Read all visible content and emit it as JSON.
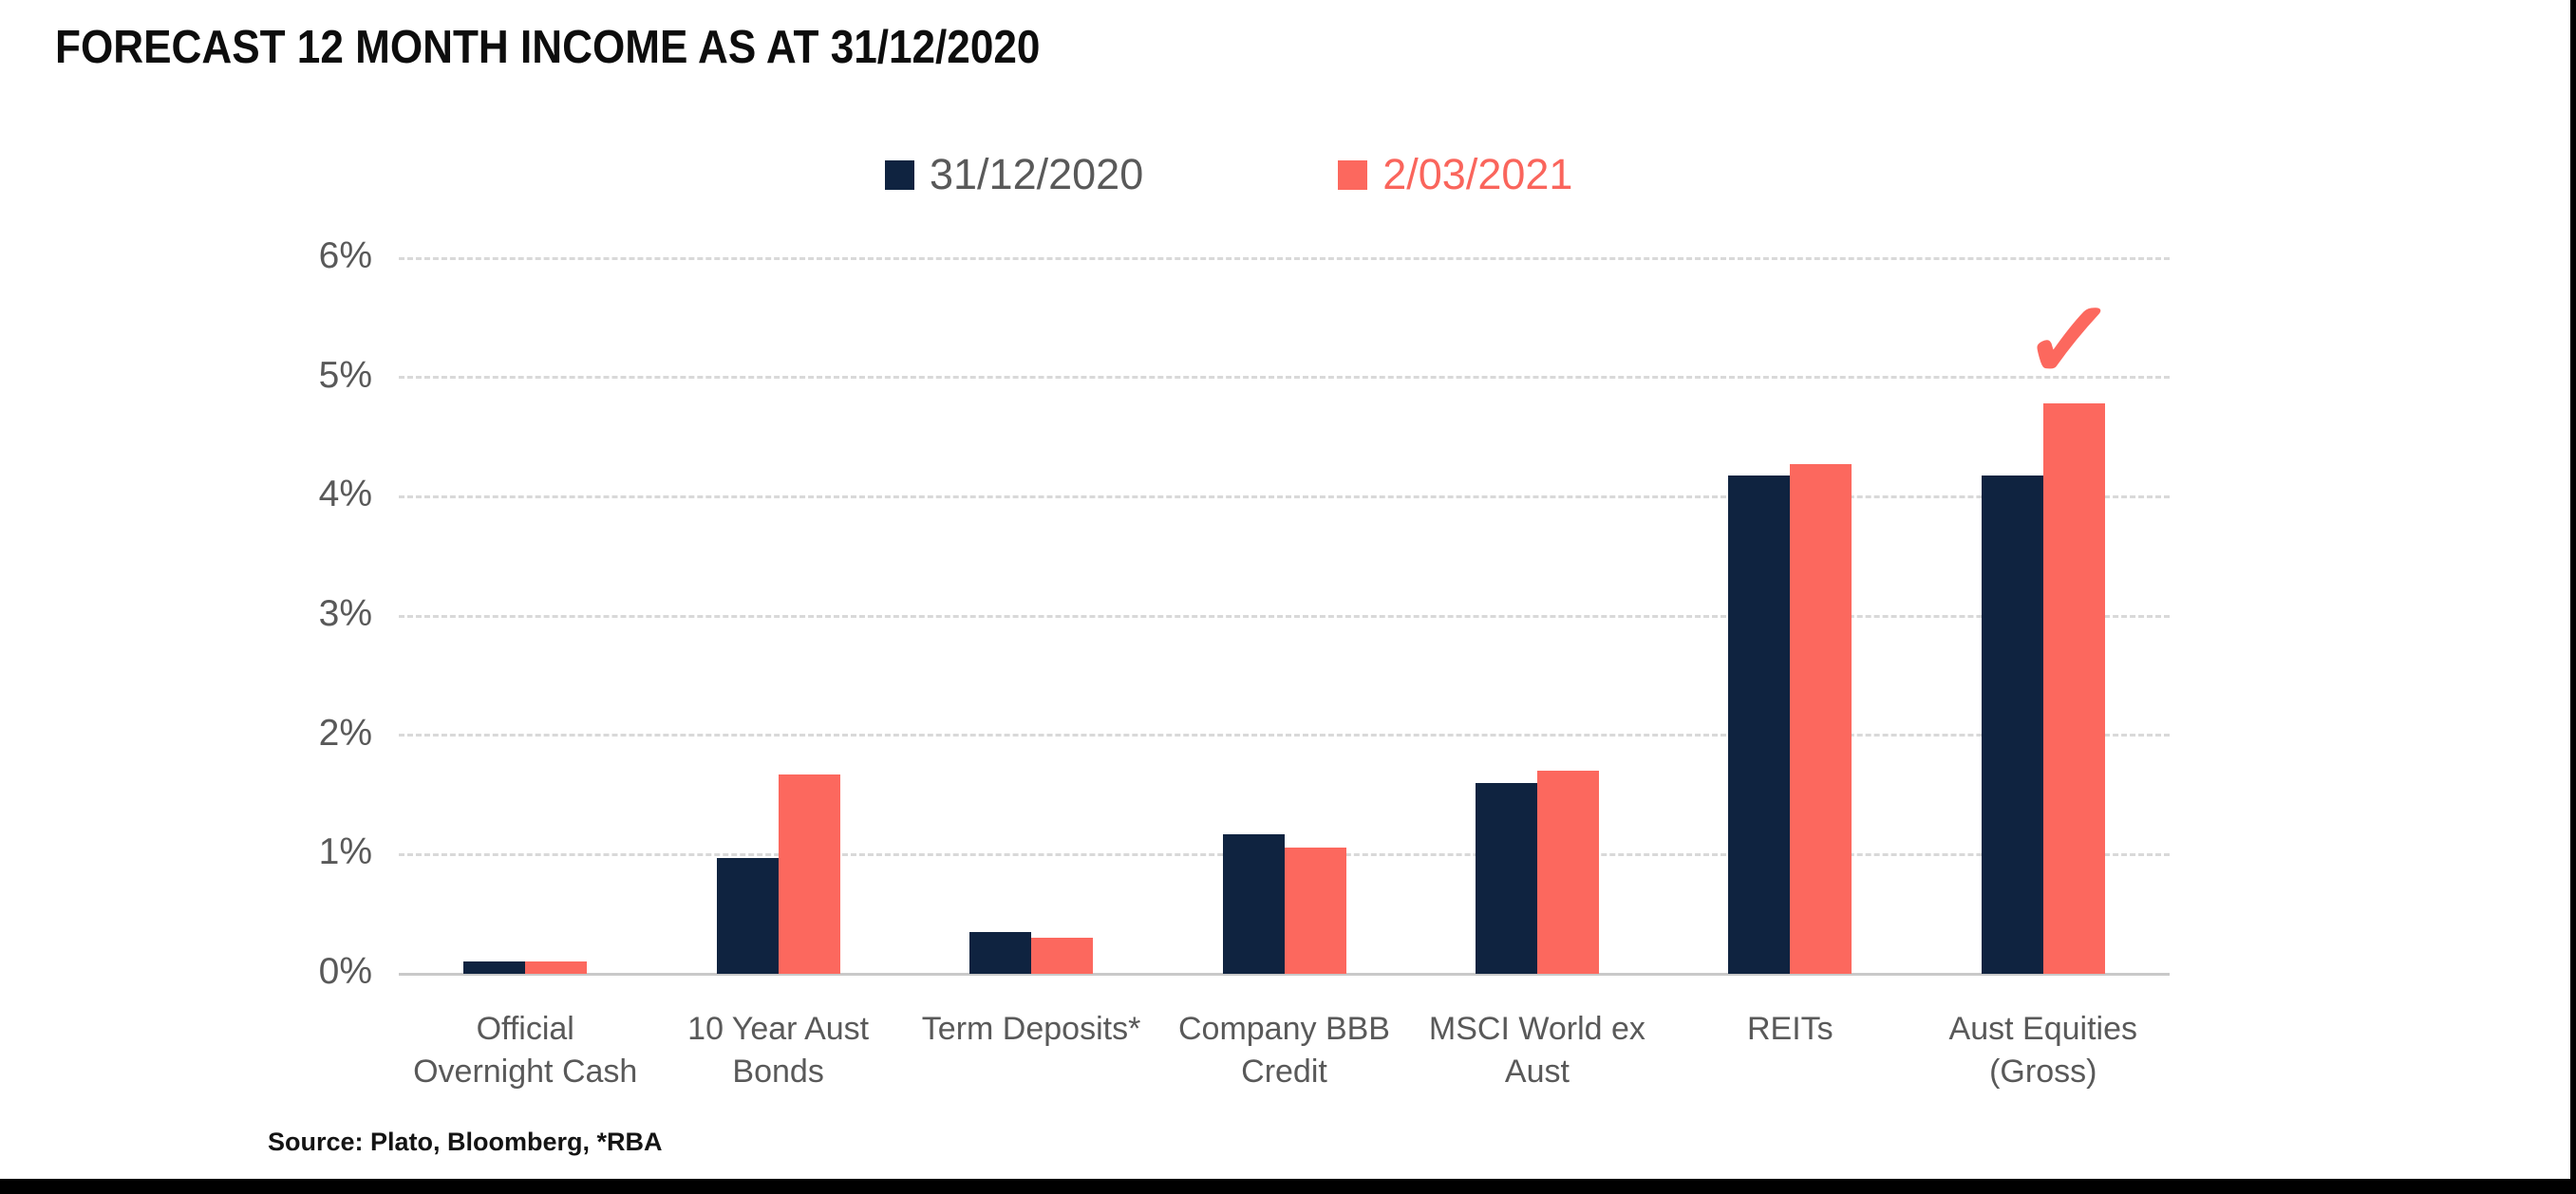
{
  "title": "FORECAST 12 MONTH INCOME AS AT 31/12/2020",
  "source_note": "Source: Plato, Bloomberg, *RBA",
  "colors": {
    "series_navy": "#0f2340",
    "series_coral": "#fc685e",
    "legend_navy_text": "#595959",
    "legend_coral_text": "#fa655c",
    "gridline": "#d9d9d9",
    "axis_line": "#c9c9c9",
    "tick_text": "#595959",
    "category_text": "#595959",
    "title_text": "#0d0d0d"
  },
  "annotation": {
    "checkmark_glyph": "✓",
    "color": "#fc685e",
    "target": "Aust Equities (Gross) — 2/03/2021 bar"
  },
  "chart_data": {
    "type": "bar",
    "title": "FORECAST 12 MONTH INCOME AS AT 31/12/2020",
    "categories": [
      "Official Overnight Cash",
      "10 Year Aust Bonds",
      "Term Deposits*",
      "Company BBB Credit",
      "MSCI World ex Aust",
      "REITs",
      "Aust Equities (Gross)"
    ],
    "categories_display": [
      "Official\nOvernight Cash",
      "10 Year Aust\nBonds",
      "Term Deposits*",
      "Company BBB\nCredit",
      "MSCI World ex\nAust",
      "REITs",
      "Aust Equities\n(Gross)"
    ],
    "series": [
      {
        "name": "31/12/2020",
        "color": "#0f2340",
        "legend_text_color": "#595959",
        "values": [
          0.1,
          0.97,
          0.35,
          1.17,
          1.6,
          4.18,
          4.18
        ]
      },
      {
        "name": "2/03/2021",
        "color": "#fc685e",
        "legend_text_color": "#fa655c",
        "values": [
          0.1,
          1.67,
          0.3,
          1.06,
          1.7,
          4.27,
          4.78
        ]
      }
    ],
    "xlabel": "",
    "ylabel": "",
    "yticks": [
      "0%",
      "1%",
      "2%",
      "3%",
      "4%",
      "5%",
      "6%"
    ],
    "ylim": [
      0,
      6
    ],
    "grid": "horizontal-dashed",
    "legend_position": "top-center",
    "unit": "percent"
  }
}
